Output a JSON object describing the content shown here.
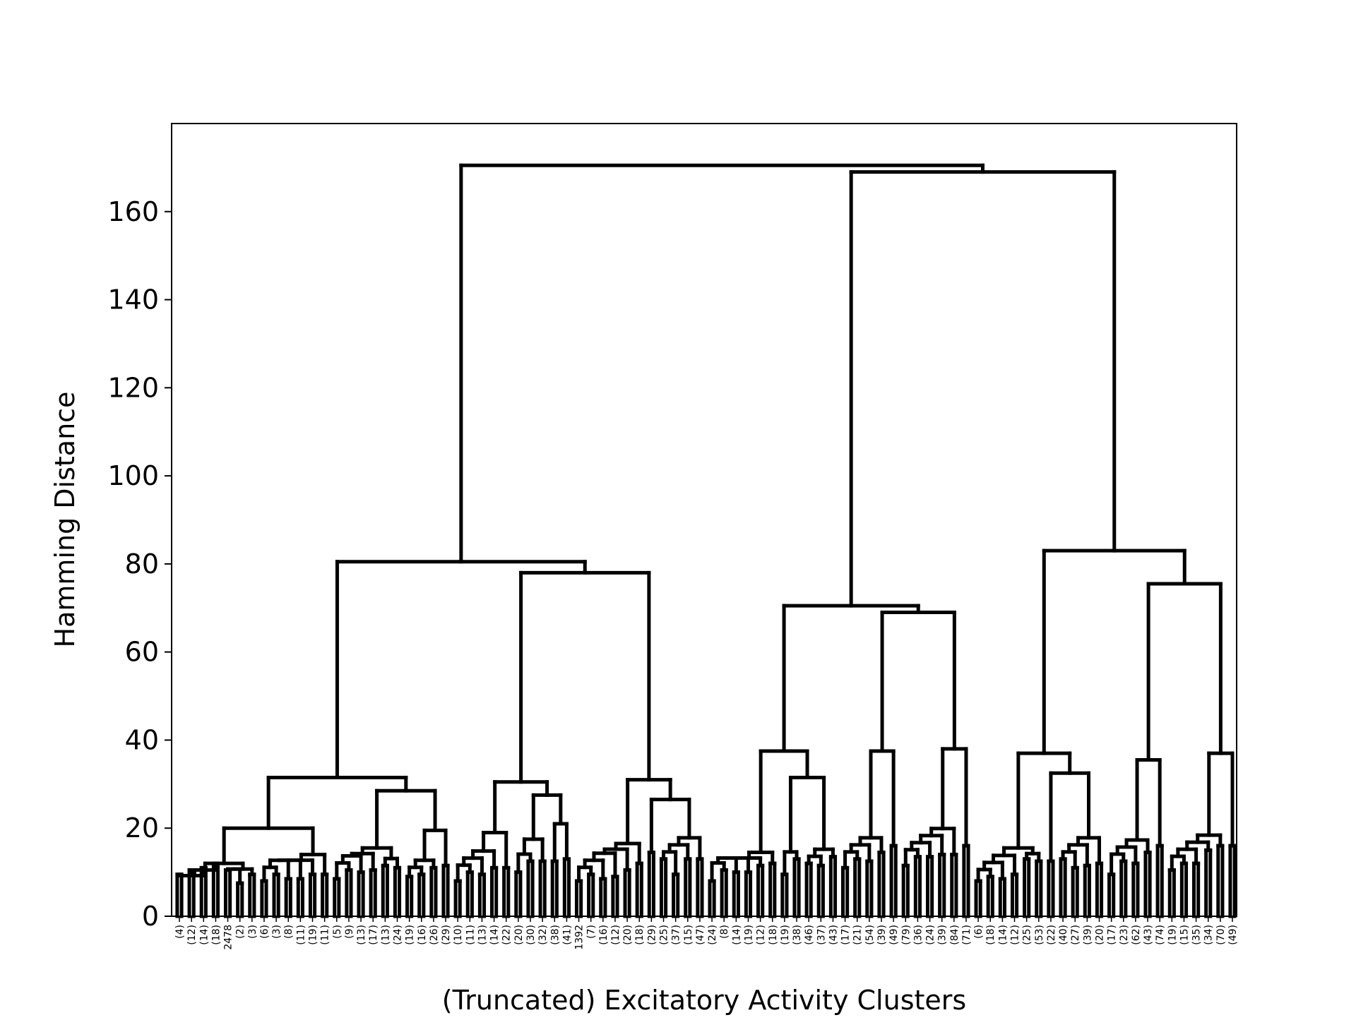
{
  "chart_data": {
    "type": "dendrogram",
    "title": "",
    "xlabel": "(Truncated) Excitatory Activity Clusters",
    "ylabel": "Hamming Distance",
    "ylim": [
      0,
      180
    ],
    "yticks": [
      0,
      20,
      40,
      60,
      80,
      100,
      120,
      140,
      160
    ],
    "grid": false,
    "leaves": [
      {
        "label": "(4)",
        "h": 9.5
      },
      {
        "label": "(12)",
        "h": 10.5
      },
      {
        "label": "(14)",
        "h": 11
      },
      {
        "label": "(18)",
        "h": 12
      },
      {
        "label": "2478",
        "h": 10.5
      },
      {
        "label": "(2)",
        "h": 7.5
      },
      {
        "label": "(3)",
        "h": 9.5
      },
      {
        "label": "(6)",
        "h": 8
      },
      {
        "label": "(3)",
        "h": 9.5
      },
      {
        "label": "(8)",
        "h": 8.5
      },
      {
        "label": "(11)",
        "h": 8.5
      },
      {
        "label": "(19)",
        "h": 9.5
      },
      {
        "label": "(11)",
        "h": 9.5
      },
      {
        "label": "(5)",
        "h": 8.5
      },
      {
        "label": "(9)",
        "h": 10.5
      },
      {
        "label": "(13)",
        "h": 10
      },
      {
        "label": "(17)",
        "h": 10.5
      },
      {
        "label": "(13)",
        "h": 11.5
      },
      {
        "label": "(24)",
        "h": 11
      },
      {
        "label": "(19)",
        "h": 9
      },
      {
        "label": "(16)",
        "h": 9.5
      },
      {
        "label": "(26)",
        "h": 11
      },
      {
        "label": "(29)",
        "h": 11.5
      },
      {
        "label": "(10)",
        "h": 8
      },
      {
        "label": "(11)",
        "h": 10
      },
      {
        "label": "(13)",
        "h": 9.5
      },
      {
        "label": "(14)",
        "h": 11
      },
      {
        "label": "(22)",
        "h": 11
      },
      {
        "label": "(20)",
        "h": 10
      },
      {
        "label": "(30)",
        "h": 12.5
      },
      {
        "label": "(32)",
        "h": 12.5
      },
      {
        "label": "(38)",
        "h": 12.5
      },
      {
        "label": "(41)",
        "h": 13
      },
      {
        "label": "1392",
        "h": 8
      },
      {
        "label": "(7)",
        "h": 9.5
      },
      {
        "label": "(16)",
        "h": 8.5
      },
      {
        "label": "(12)",
        "h": 9
      },
      {
        "label": "(20)",
        "h": 10.5
      },
      {
        "label": "(18)",
        "h": 12
      },
      {
        "label": "(29)",
        "h": 14.5
      },
      {
        "label": "(25)",
        "h": 13
      },
      {
        "label": "(37)",
        "h": 9.5
      },
      {
        "label": "(15)",
        "h": 13
      },
      {
        "label": "(47)",
        "h": 13
      },
      {
        "label": "(24)",
        "h": 8
      },
      {
        "label": "(8)",
        "h": 10.5
      },
      {
        "label": "(14)",
        "h": 10
      },
      {
        "label": "(19)",
        "h": 10
      },
      {
        "label": "(12)",
        "h": 11.5
      },
      {
        "label": "(18)",
        "h": 12
      },
      {
        "label": "(19)",
        "h": 9.5
      },
      {
        "label": "(38)",
        "h": 13
      },
      {
        "label": "(46)",
        "h": 12
      },
      {
        "label": "(37)",
        "h": 11.5
      },
      {
        "label": "(43)",
        "h": 13.5
      },
      {
        "label": "(17)",
        "h": 11
      },
      {
        "label": "(21)",
        "h": 13
      },
      {
        "label": "(54)",
        "h": 12.5
      },
      {
        "label": "(39)",
        "h": 14.5
      },
      {
        "label": "(49)",
        "h": 16
      },
      {
        "label": "(79)",
        "h": 11.5
      },
      {
        "label": "(36)",
        "h": 13.5
      },
      {
        "label": "(24)",
        "h": 13.5
      },
      {
        "label": "(39)",
        "h": 14
      },
      {
        "label": "(84)",
        "h": 14
      },
      {
        "label": "(71)",
        "h": 16
      },
      {
        "label": "(6)",
        "h": 8
      },
      {
        "label": "(18)",
        "h": 9
      },
      {
        "label": "(14)",
        "h": 8.5
      },
      {
        "label": "(12)",
        "h": 9.5
      },
      {
        "label": "(25)",
        "h": 13
      },
      {
        "label": "(53)",
        "h": 12.5
      },
      {
        "label": "(22)",
        "h": 12.5
      },
      {
        "label": "(40)",
        "h": 13
      },
      {
        "label": "(27)",
        "h": 11
      },
      {
        "label": "(39)",
        "h": 11.5
      },
      {
        "label": "(20)",
        "h": 12
      },
      {
        "label": "(17)",
        "h": 9.5
      },
      {
        "label": "(23)",
        "h": 12.5
      },
      {
        "label": "(62)",
        "h": 12
      },
      {
        "label": "(43)",
        "h": 14.5
      },
      {
        "label": "(74)",
        "h": 16
      },
      {
        "label": "(19)",
        "h": 10.5
      },
      {
        "label": "(15)",
        "h": 12
      },
      {
        "label": "(35)",
        "h": 12
      },
      {
        "label": "(34)",
        "h": 15
      },
      {
        "label": "(70)",
        "h": 16
      },
      {
        "label": "(49)",
        "h": 16
      }
    ],
    "merge_heights": [
      {
        "leaves": "0-3",
        "h": 10.5
      },
      {
        "leaves": "0-6",
        "h": 12
      },
      {
        "leaves": "7-12",
        "h": 14
      },
      {
        "leaves": "0-12",
        "h": 20
      },
      {
        "leaves": "13-18",
        "h": 15.5
      },
      {
        "leaves": "19-22",
        "h": 19.5
      },
      {
        "leaves": "13-22",
        "h": 28.5
      },
      {
        "leaves": "0-22",
        "h": 31.5
      },
      {
        "leaves": "23-27",
        "h": 19
      },
      {
        "leaves": "28-30",
        "h": 17.5
      },
      {
        "leaves": "29-32",
        "h": 21
      },
      {
        "leaves": "28-32",
        "h": 27.5
      },
      {
        "leaves": "23-32",
        "h": 30.5
      },
      {
        "leaves": "33-38",
        "h": 16.5
      },
      {
        "leaves": "39-43",
        "h": 26.5
      },
      {
        "leaves": "33-43",
        "h": 31
      },
      {
        "leaves": "23-43",
        "h": 78
      },
      {
        "leaves": "0-43",
        "h": 80.5
      },
      {
        "leaves": "44-49",
        "h": 14.5
      },
      {
        "leaves": "50-54",
        "h": 31.5
      },
      {
        "leaves": "44-54",
        "h": 37.5
      },
      {
        "leaves": "55-59",
        "h": 37.5
      },
      {
        "leaves": "60-65",
        "h": 38
      },
      {
        "leaves": "55-65",
        "h": 69
      },
      {
        "leaves": "44-65",
        "h": 70.5
      },
      {
        "leaves": "66-71",
        "h": 15.5
      },
      {
        "leaves": "72-76",
        "h": 32.5
      },
      {
        "leaves": "66-76",
        "h": 37
      },
      {
        "leaves": "77-81",
        "h": 35.5
      },
      {
        "leaves": "82-87",
        "h": 37
      },
      {
        "leaves": "77-87",
        "h": 75.5
      },
      {
        "leaves": "66-87",
        "h": 83
      },
      {
        "leaves": "44-87",
        "h": 169
      },
      {
        "leaves": "0-87",
        "h": 170.5
      }
    ]
  }
}
